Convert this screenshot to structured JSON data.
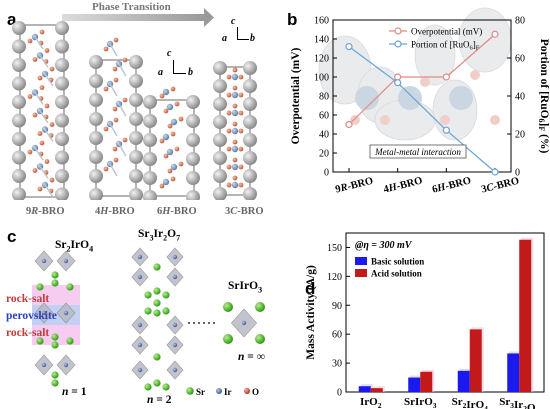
{
  "panel_a": {
    "label": "a",
    "arrow_text": "Phase Transition",
    "structures": [
      {
        "name": "9R-BRO",
        "prefix": "9",
        "italic": "R",
        "suffix": "-BRO"
      },
      {
        "name": "4H-BRO",
        "prefix": "4",
        "italic": "H",
        "suffix": "-BRO"
      },
      {
        "name": "6H-BRO",
        "prefix": "6",
        "italic": "H",
        "suffix": "-BRO"
      },
      {
        "name": "3C-BRO",
        "prefix": "3",
        "italic": "C",
        "suffix": "-BRO"
      }
    ],
    "axes1": {
      "c": "c",
      "a": "a",
      "b": "b"
    },
    "axes2": {
      "c": "c",
      "a": "a",
      "b": "b"
    }
  },
  "panel_b": {
    "label": "b",
    "chart_data": {
      "type": "line",
      "categories": [
        "9R-BRO",
        "4H-BRO",
        "6H-BRO",
        "3C-BRO"
      ],
      "series": [
        {
          "name": "Overpotential (mV)",
          "values": [
            50,
            100,
            100,
            145
          ],
          "color": "#e08a84",
          "axis": "left"
        },
        {
          "name": "Portion of [RuO6]F",
          "values": [
            66,
            47,
            22,
            0
          ],
          "color": "#6aa3d8",
          "axis": "right"
        }
      ],
      "ylabel": "Overpotential (mV)",
      "y2label": "Portion of [RuO6]F (%)",
      "ylim": [
        0,
        160
      ],
      "yticks": [
        0,
        20,
        40,
        60,
        80,
        100,
        120,
        140,
        160
      ],
      "y2lim": [
        0,
        80
      ],
      "y2ticks": [
        0,
        20,
        40,
        60,
        80
      ],
      "legend": "top-center",
      "annotation": "Metal-metal interaction"
    }
  },
  "panel_c": {
    "label": "c",
    "sr2iro4": "Sr2IrO4",
    "sr3ir2o7": "Sr3Ir2O7",
    "sriro3": "SrIrO3",
    "layers": [
      "rock-salt",
      "perovskite",
      "rock-salt"
    ],
    "n1": "n = 1",
    "n2": "n = 2",
    "ninf": "n = ∞",
    "legend": [
      "Sr",
      "Ir",
      "O"
    ]
  },
  "panel_d": {
    "label": "d",
    "chart_data": {
      "type": "bar",
      "categories": [
        "IrO2",
        "SrIrO3",
        "Sr2IrO4",
        "Sr3Ir2O7"
      ],
      "series": [
        {
          "name": "Basic solution",
          "values": [
            6,
            15,
            22,
            40
          ],
          "color": "#1a1aee"
        },
        {
          "name": "Acid solution",
          "values": [
            4,
            21,
            65,
            158
          ],
          "color": "#c21a1a"
        }
      ],
      "ylabel": "Mass Activity (A/g)",
      "ylim": [
        0,
        165
      ],
      "yticks": [
        0,
        30,
        60,
        90,
        120,
        150
      ],
      "annotation": "@η = 300 mV",
      "legend": "top-left"
    }
  }
}
